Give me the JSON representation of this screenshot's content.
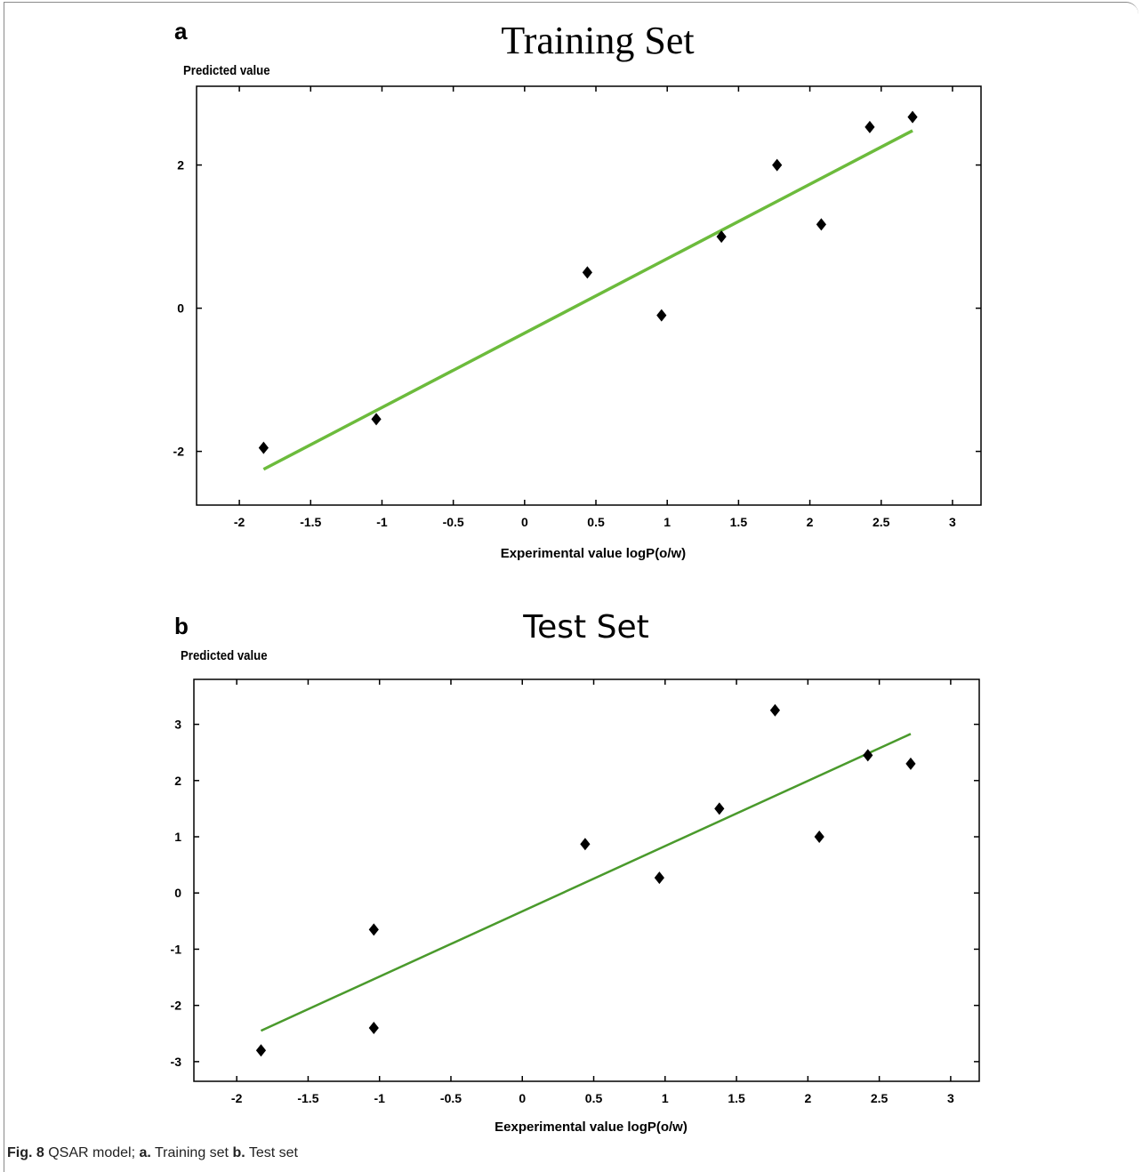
{
  "figure": {
    "caption_label": "Fig. 8",
    "caption_text": "QSAR model;",
    "caption_a": "a.",
    "caption_a_text": "Training set",
    "caption_b": "b.",
    "caption_b_text": "Test set"
  },
  "chart_data": [
    {
      "panel": "a",
      "type": "scatter",
      "title": "Training Set",
      "xlabel": "Experimental value logP(o/w)",
      "ylabel": "Predicted value",
      "xlim": [
        -2.3,
        3.2
      ],
      "ylim": [
        -2.75,
        3.1
      ],
      "xticks": [
        -2,
        -1.5,
        -1,
        -0.5,
        0,
        0.5,
        1,
        1.5,
        2,
        2.5,
        3
      ],
      "yticks": [
        -2,
        0,
        2
      ],
      "grid": false,
      "points": [
        {
          "x": -1.83,
          "y": -1.95
        },
        {
          "x": -1.04,
          "y": -1.55
        },
        {
          "x": 0.44,
          "y": 0.5
        },
        {
          "x": 0.96,
          "y": -0.1
        },
        {
          "x": 1.38,
          "y": 1.0
        },
        {
          "x": 1.77,
          "y": 2.0
        },
        {
          "x": 2.08,
          "y": 1.17
        },
        {
          "x": 2.42,
          "y": 2.53
        },
        {
          "x": 2.72,
          "y": 2.67
        }
      ],
      "fit_line": {
        "x": [
          -1.83,
          2.72
        ],
        "y": [
          -2.25,
          2.48
        ]
      },
      "colors": {
        "points": "#000000",
        "fit_line": "#6cbb3c"
      }
    },
    {
      "panel": "b",
      "type": "scatter",
      "title": "Test Set",
      "xlabel": "Eexperimental value logP(o/w)",
      "ylabel": "Predicted value",
      "xlim": [
        -2.3,
        3.2
      ],
      "ylim": [
        -3.35,
        3.8
      ],
      "xticks": [
        -2,
        -1.5,
        -1,
        -0.5,
        0,
        0.5,
        1,
        1.5,
        2,
        2.5,
        3
      ],
      "yticks": [
        -3,
        -2,
        -1,
        0,
        1,
        2,
        3
      ],
      "grid": false,
      "points": [
        {
          "x": -1.83,
          "y": -2.8
        },
        {
          "x": -1.04,
          "y": -0.65
        },
        {
          "x": -1.04,
          "y": -2.4
        },
        {
          "x": 0.44,
          "y": 0.87
        },
        {
          "x": 0.96,
          "y": 0.27
        },
        {
          "x": 1.38,
          "y": 1.5
        },
        {
          "x": 1.77,
          "y": 3.25
        },
        {
          "x": 2.08,
          "y": 1.0
        },
        {
          "x": 2.42,
          "y": 2.45
        },
        {
          "x": 2.72,
          "y": 2.3
        }
      ],
      "fit_line": {
        "x": [
          -1.83,
          2.72
        ],
        "y": [
          -2.45,
          2.83
        ]
      },
      "colors": {
        "points": "#000000",
        "fit_line": "#4a9a2c"
      }
    }
  ]
}
